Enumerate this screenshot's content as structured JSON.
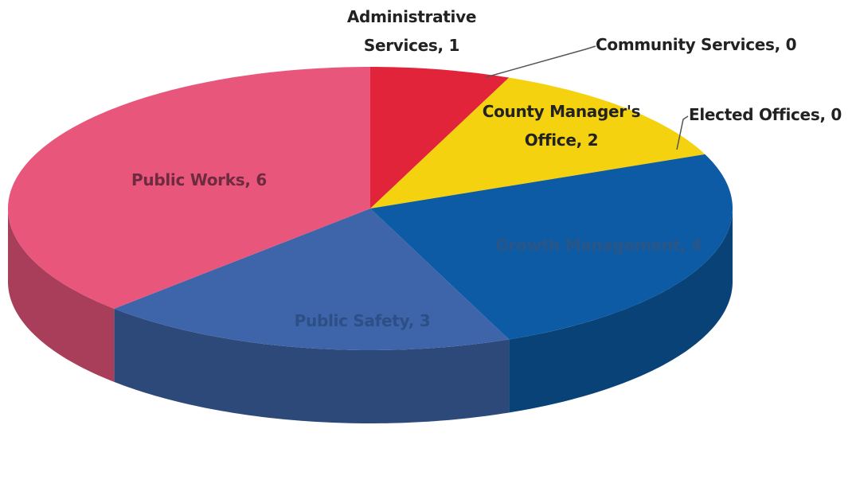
{
  "chart_data": {
    "type": "pie3d",
    "categories": [
      "Administrative Services",
      "Community Services",
      "County Manager's Office",
      "Elected Offices",
      "Growth Management",
      "Public Safety",
      "Public Works"
    ],
    "values": [
      1,
      0,
      2,
      0,
      4,
      3,
      6
    ],
    "colors": [
      "#e2243a",
      "#8fb94a",
      "#f4d20f",
      "#7e4fa0",
      "#0d5ba5",
      "#3e65aa",
      "#e9567c"
    ],
    "label_separator": ", "
  }
}
